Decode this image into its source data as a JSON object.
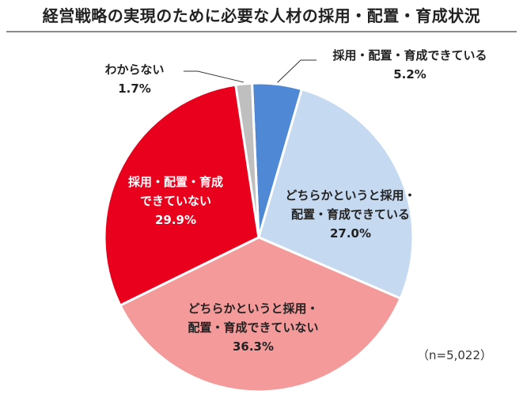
{
  "page": {
    "title": "経営戦略の実現のために必要な人材の採用・配置・育成状況",
    "note": "（n=5,022）"
  },
  "chart_data": {
    "type": "pie",
    "title": "経営戦略の実現のために必要な人材の採用・配置・育成状況",
    "start_angle_deg": -2.5,
    "direction": "clockwise",
    "slices": [
      {
        "label": "採用・配置・育成できている",
        "value": 5.2,
        "display": "5.2%",
        "color": "#4F88D4"
      },
      {
        "label": "どちらかというと採用・配置・育成できている",
        "value": 27.0,
        "display": "27.0%",
        "color": "#C5D9F1"
      },
      {
        "label": "どちらかというと採用・配置・育成できていない",
        "value": 36.3,
        "display": "36.3%",
        "color": "#F59A9A"
      },
      {
        "label": "採用・配置・育成できていない",
        "value": 29.9,
        "display": "29.9%",
        "color": "#E8001C"
      },
      {
        "label": "わからない",
        "value": 1.7,
        "display": "1.7%",
        "color": "#BFBFBF"
      }
    ],
    "labels": [
      {
        "lines": [
          "採用・配置・育成できている"
        ],
        "pct": "5.2%"
      },
      {
        "lines": [
          "どちらかというと採用・",
          "配置・育成できている"
        ],
        "pct": "27.0%"
      },
      {
        "lines": [
          "どちらかというと採用・",
          "配置・育成できていない"
        ],
        "pct": "36.3%"
      },
      {
        "lines": [
          "採用・配置・育成",
          "できていない"
        ],
        "pct": "29.9%"
      },
      {
        "lines": [
          "わからない"
        ],
        "pct": "1.7%"
      }
    ],
    "n": "n=5,022"
  }
}
